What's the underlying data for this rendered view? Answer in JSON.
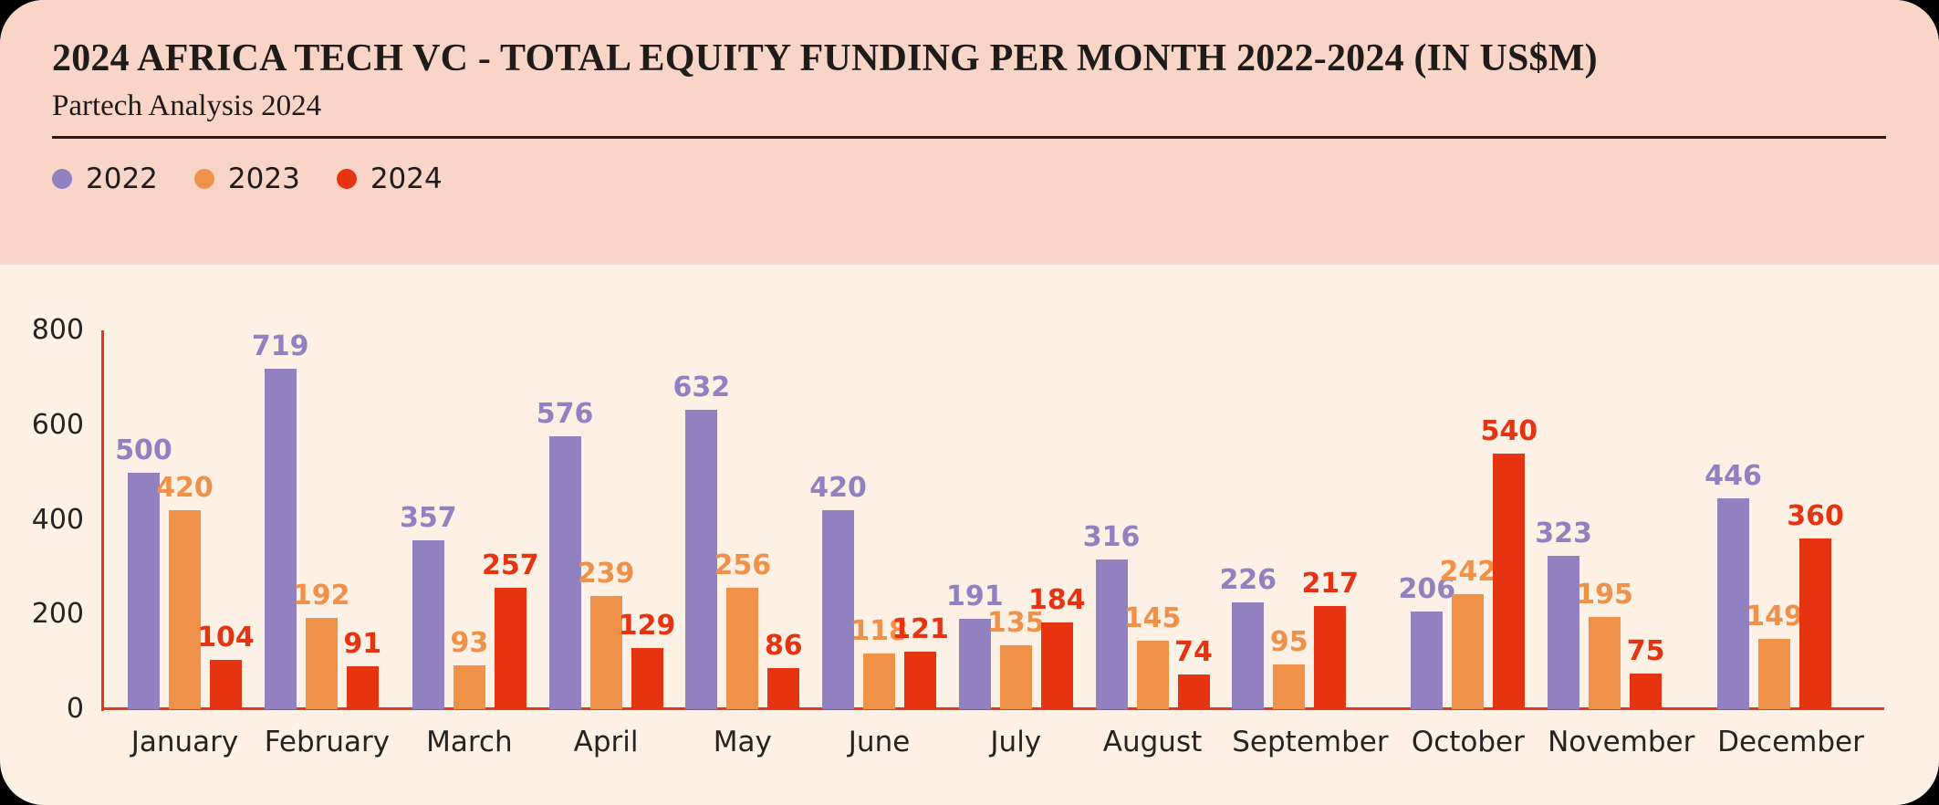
{
  "header": {
    "title": "2024 AFRICA TECH VC - TOTAL EQUITY FUNDING PER MONTH 2022-2024 (IN US$M)",
    "subtitle": "Partech Analysis 2024"
  },
  "legend": {
    "items": [
      {
        "label": "2022",
        "color": "#9181c1"
      },
      {
        "label": "2023",
        "color": "#f0914a"
      },
      {
        "label": "2024",
        "color": "#e63413"
      }
    ]
  },
  "colors": {
    "header_bg": "#f9d5c7",
    "chart_bg": "#fdf0e4",
    "outer_bg": "#000000",
    "axis": "#e8351c",
    "text_dark": "#1e1b1a",
    "tick_text": "#262323",
    "divider": "#231f1e"
  },
  "chart_data": {
    "type": "bar",
    "title": "2024 AFRICA TECH VC - TOTAL EQUITY FUNDING PER MONTH 2022-2024 (IN US$M)",
    "subtitle": "Partech Analysis 2024",
    "categories": [
      "January",
      "February",
      "March",
      "April",
      "May",
      "June",
      "July",
      "August",
      "September",
      "October",
      "November",
      "December"
    ],
    "series": [
      {
        "name": "2022",
        "color": "#9181c1",
        "values": [
          500,
          719,
          357,
          576,
          632,
          420,
          191,
          316,
          226,
          206,
          323,
          446
        ]
      },
      {
        "name": "2023",
        "color": "#f0914a",
        "values": [
          420,
          192,
          93,
          239,
          256,
          118,
          135,
          145,
          95,
          242,
          195,
          149
        ]
      },
      {
        "name": "2024",
        "color": "#e63413",
        "values": [
          104,
          91,
          257,
          129,
          86,
          121,
          184,
          74,
          217,
          540,
          75,
          360
        ]
      }
    ],
    "xlabel": "",
    "ylabel": "",
    "ylim": [
      0,
      800
    ],
    "yticks": [
      0,
      200,
      400,
      600,
      800
    ],
    "grid": false,
    "legend_position": "top-left",
    "value_labels": true
  }
}
